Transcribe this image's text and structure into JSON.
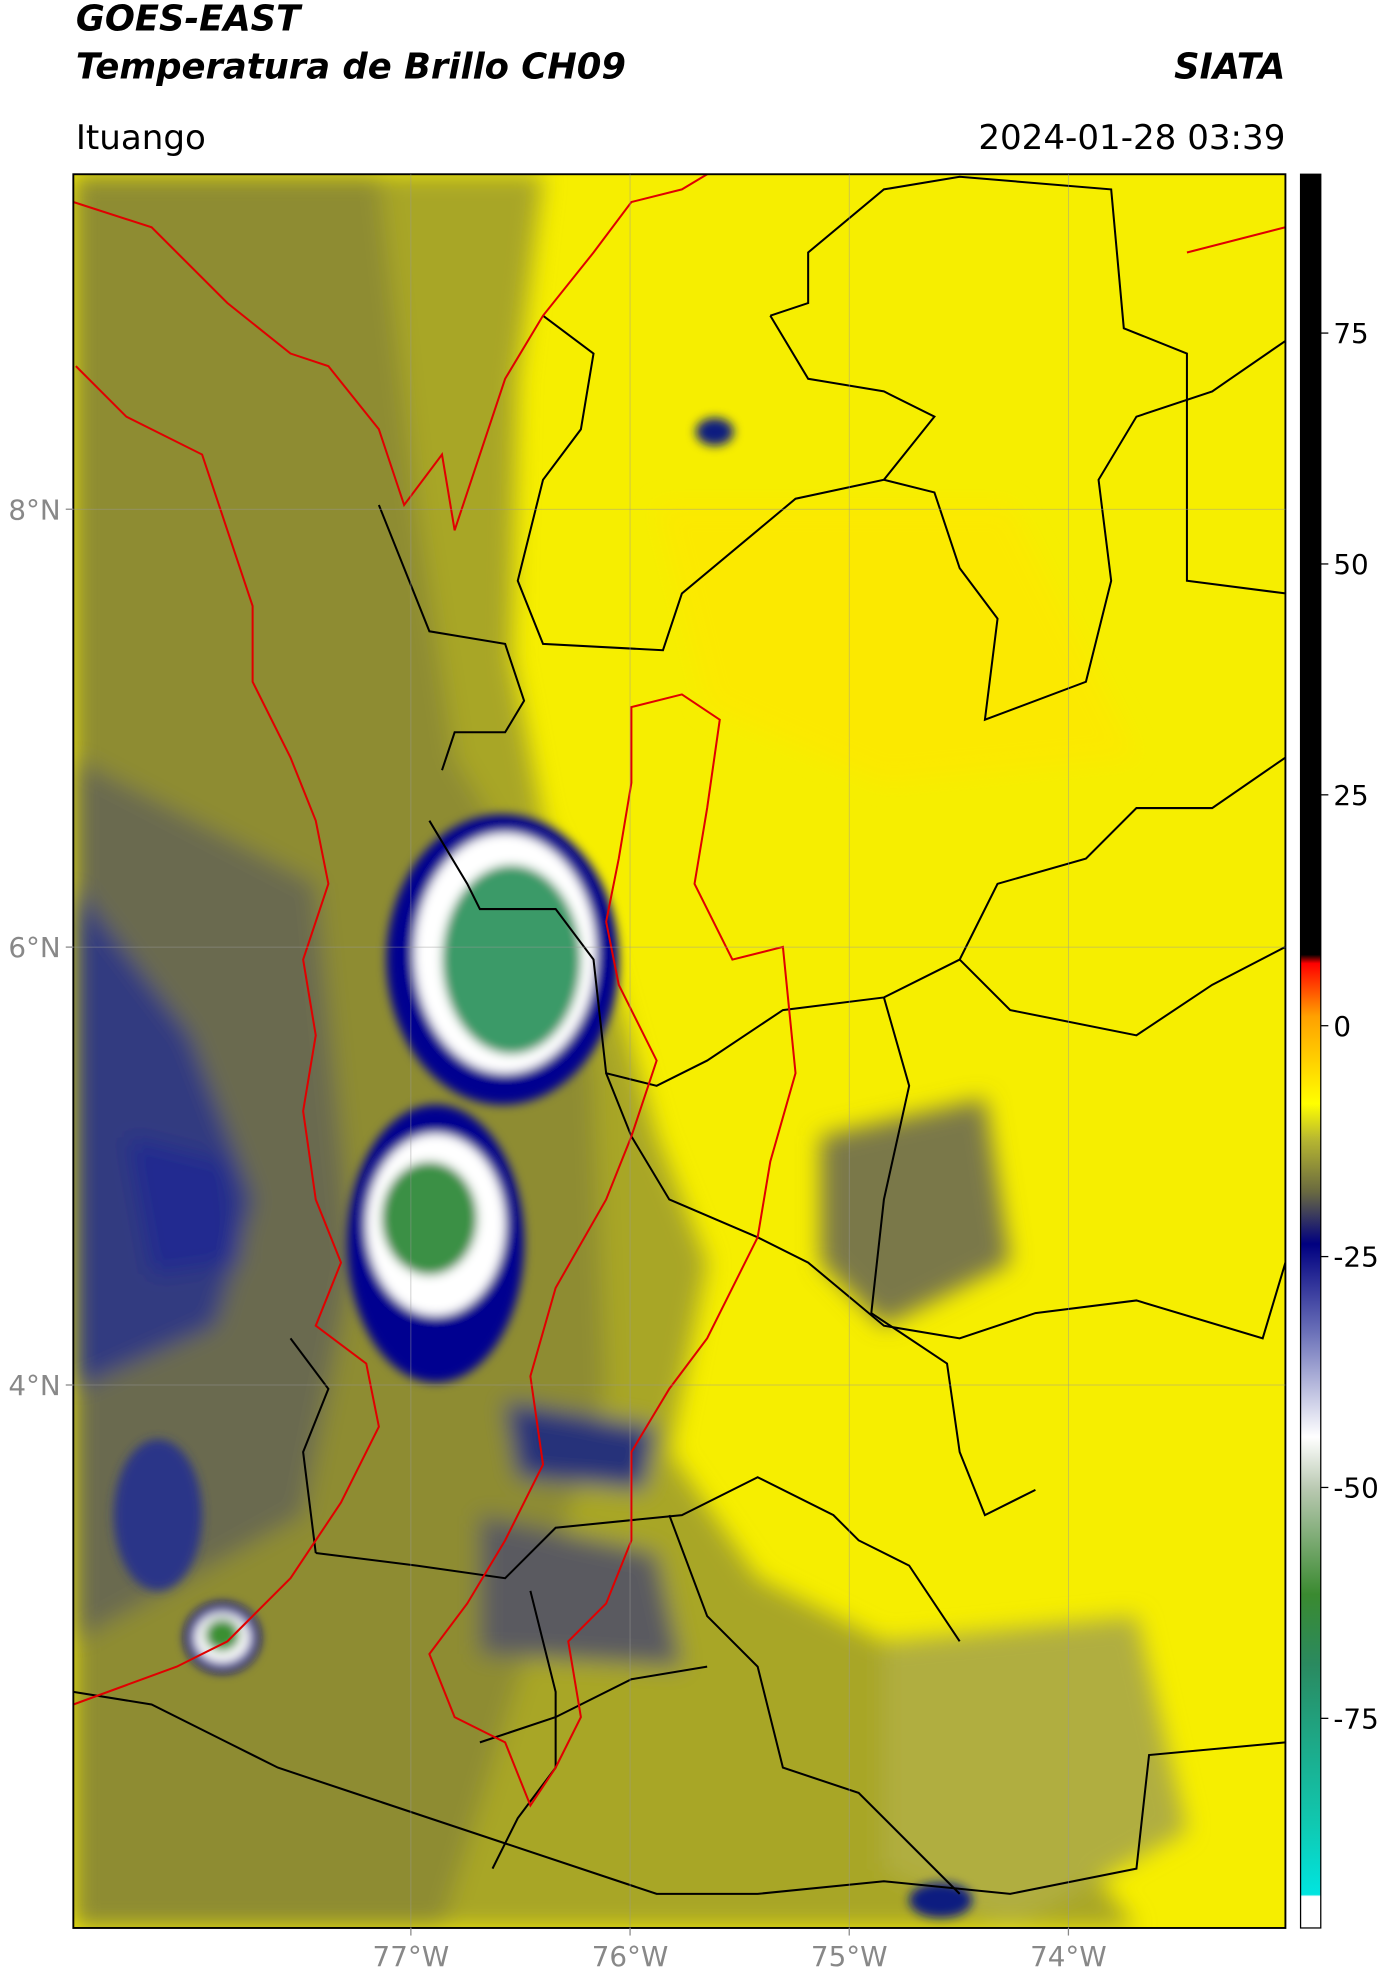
{
  "header": {
    "satellite": "GOES-EAST",
    "product": "Temperatura de Brillo CH09",
    "org": "SIATA",
    "location": "Ituango",
    "datetime": "2024-01-28 03:39"
  },
  "map": {
    "xlim": [
      -78.54,
      -73.01
    ],
    "ylim": [
      1.52,
      9.53
    ],
    "xticks": [
      {
        "value": -77,
        "label": "77°W"
      },
      {
        "value": -76,
        "label": "76°W"
      },
      {
        "value": -75,
        "label": "75°W"
      },
      {
        "value": -74,
        "label": "74°W"
      }
    ],
    "yticks": [
      {
        "value": 4,
        "label": "4°N"
      },
      {
        "value": 6,
        "label": "6°N"
      },
      {
        "value": 8,
        "label": "8°N"
      }
    ],
    "grid": true
  },
  "colorbar": {
    "lim": [
      -97.7,
      92.2
    ],
    "ticks": [
      -75,
      -50,
      -25,
      0,
      25,
      50,
      75
    ]
  }
}
